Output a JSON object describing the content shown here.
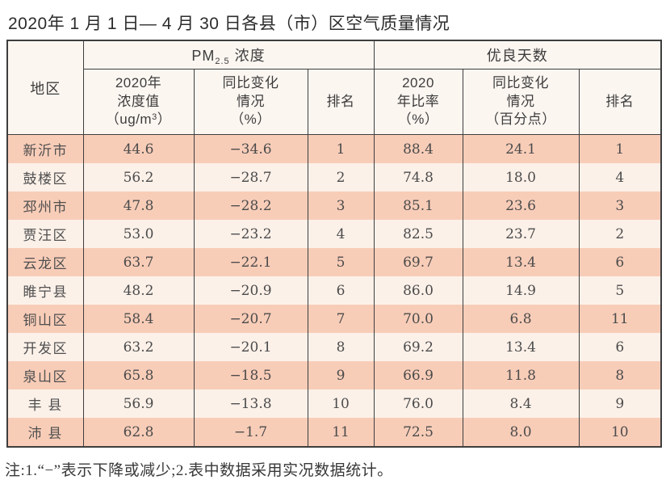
{
  "title": "2020年 1 月 1 日— 4 月 30 日各县（市）区空气质量情况",
  "table": {
    "header": {
      "region": "地区",
      "pm_group": {
        "prefix": "PM",
        "sub": "2.5",
        "suffix": " 浓度"
      },
      "good_days_group": "优良天数",
      "col_concentration": {
        "line1": "2020年",
        "line2": "浓度值",
        "line3_pre": "（ug/m",
        "line3_sup": "3",
        "line3_post": "）"
      },
      "col_pm_change": {
        "line1": "同比变化",
        "line2": "情况",
        "line3": "（%）"
      },
      "col_pm_rank": "排名",
      "col_ratio": {
        "line1": "2020",
        "line2": "年比率",
        "line3": "（%）"
      },
      "col_days_change": {
        "line1": "同比变化",
        "line2": "情况",
        "line3": "（百分点）"
      },
      "col_days_rank": "排名"
    },
    "rows": [
      {
        "region": "新沂市",
        "pm_value": "44.6",
        "pm_change": "−34.6",
        "pm_rank": "1",
        "ratio": "88.4",
        "days_change": "24.1",
        "days_rank": "1"
      },
      {
        "region": "鼓楼区",
        "pm_value": "56.2",
        "pm_change": "−28.7",
        "pm_rank": "2",
        "ratio": "74.8",
        "days_change": "18.0",
        "days_rank": "4"
      },
      {
        "region": "邳州市",
        "pm_value": "47.8",
        "pm_change": "−28.2",
        "pm_rank": "3",
        "ratio": "85.1",
        "days_change": "23.6",
        "days_rank": "3"
      },
      {
        "region": "贾汪区",
        "pm_value": "53.0",
        "pm_change": "−23.2",
        "pm_rank": "4",
        "ratio": "82.5",
        "days_change": "23.7",
        "days_rank": "2"
      },
      {
        "region": "云龙区",
        "pm_value": "63.7",
        "pm_change": "−22.1",
        "pm_rank": "5",
        "ratio": "69.7",
        "days_change": "13.4",
        "days_rank": "6"
      },
      {
        "region": "睢宁县",
        "pm_value": "48.2",
        "pm_change": "−20.9",
        "pm_rank": "6",
        "ratio": "86.0",
        "days_change": "14.9",
        "days_rank": "5"
      },
      {
        "region": "铜山区",
        "pm_value": "58.4",
        "pm_change": "−20.7",
        "pm_rank": "7",
        "ratio": "70.0",
        "days_change": "6.8",
        "days_rank": "11"
      },
      {
        "region": "开发区",
        "pm_value": "63.2",
        "pm_change": "−20.1",
        "pm_rank": "8",
        "ratio": "69.2",
        "days_change": "13.4",
        "days_rank": "6"
      },
      {
        "region": "泉山区",
        "pm_value": "65.8",
        "pm_change": "−18.5",
        "pm_rank": "9",
        "ratio": "66.9",
        "days_change": "11.8",
        "days_rank": "8"
      },
      {
        "region": "丰 县",
        "pm_value": "56.9",
        "pm_change": "−13.8",
        "pm_rank": "10",
        "ratio": "76.0",
        "days_change": "8.4",
        "days_rank": "9"
      },
      {
        "region": "沛 县",
        "pm_value": "62.8",
        "pm_change": "−1.7",
        "pm_rank": "11",
        "ratio": "72.5",
        "days_change": "8.0",
        "days_rank": "10"
      }
    ]
  },
  "footnote": "注:1.“−”表示下降或减少;2.表中数据采用实况数据统计。",
  "colors": {
    "row_odd_bg": "#f8cdb8",
    "row_even_bg": "#fcf1e9",
    "header_bg": "#fcf6f1",
    "border": "#3e3e3e",
    "text": "#4b4b4b"
  }
}
